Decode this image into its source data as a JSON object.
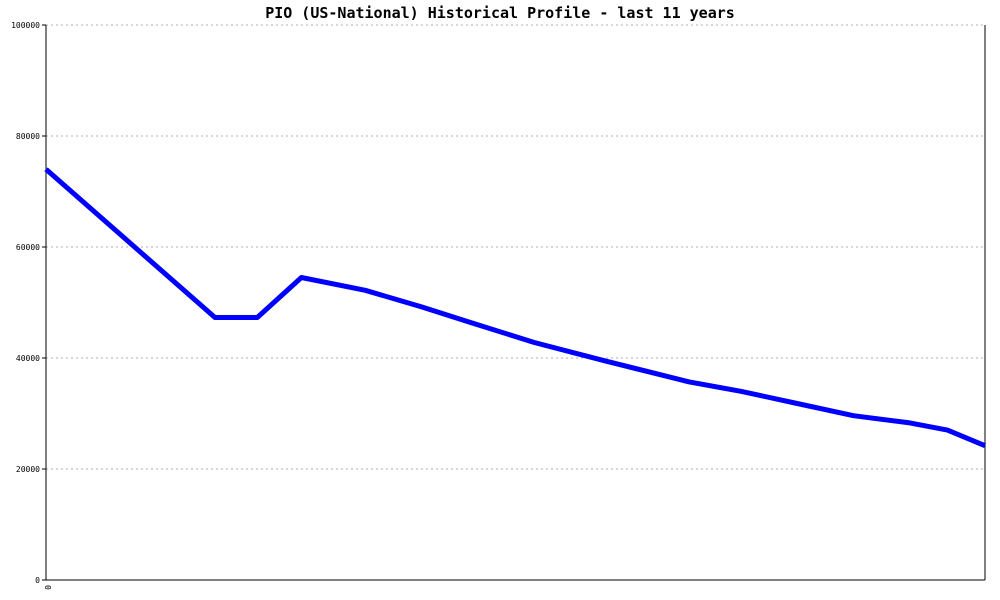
{
  "chart_data": {
    "type": "line",
    "title": "PIO (US-National) Historical Profile - last 11 years",
    "xlabel": "",
    "ylabel": "",
    "ylim": [
      0,
      100000
    ],
    "yticks": [
      0,
      20000,
      40000,
      60000,
      80000,
      100000
    ],
    "xticks": [
      "0"
    ],
    "grid": true,
    "series": [
      {
        "color": "#0000ff",
        "points": [
          [
            0.0,
            74000
          ],
          [
            0.18,
            47300
          ],
          [
            0.225,
            47300
          ],
          [
            0.272,
            54500
          ],
          [
            0.34,
            52200
          ],
          [
            0.4,
            49200
          ],
          [
            0.45,
            46500
          ],
          [
            0.52,
            42800
          ],
          [
            0.595,
            39500
          ],
          [
            0.685,
            35700
          ],
          [
            0.74,
            34000
          ],
          [
            0.8,
            31800
          ],
          [
            0.86,
            29600
          ],
          [
            0.92,
            28300
          ],
          [
            0.96,
            27000
          ],
          [
            1.0,
            24200
          ]
        ]
      }
    ]
  }
}
